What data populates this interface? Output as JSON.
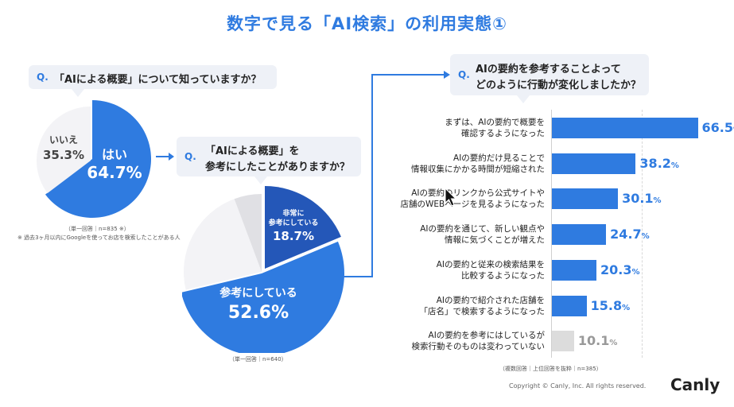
{
  "title": "数字で見る「AI検索」の利用実態①",
  "q1": {
    "mark": "Q.",
    "question": "「AIによる概要」について知っていますか？",
    "note1": "（単一回答｜n=835 ※）",
    "note2": "※ 過去3ヶ月以内にGoogleを使ってお店を検索したことがある人"
  },
  "q2": {
    "mark": "Q.",
    "question_line1": "「AIによる概要」を",
    "question_line2": "参考にしたことがありますか？",
    "note": "（単一回答｜n=640）"
  },
  "q3": {
    "mark": "Q.",
    "question_line1": "AIの要約を参考することよって",
    "question_line2": "どのように行動が変化しましたか？",
    "note": "（複数回答｜上位回答を抜粋｜n=385）"
  },
  "chart_data": [
    {
      "type": "pie",
      "slices": [
        {
          "label": "はい",
          "value": 64.7,
          "color": "#2f7be0"
        },
        {
          "label": "いいえ",
          "value": 35.3,
          "color": "#f3f3f6"
        }
      ],
      "value_unit": "%"
    },
    {
      "type": "pie",
      "slices": [
        {
          "label": "非常に参考にしている",
          "value": 18.7,
          "color": "#2457b8"
        },
        {
          "label": "参考にしている",
          "value": 52.6,
          "color": "#2f7be0"
        },
        {
          "label": "",
          "value": 23.0,
          "color": "#f3f3f6"
        },
        {
          "label": "",
          "value": 5.7,
          "color": "#e0e0e4"
        }
      ],
      "value_unit": "%"
    },
    {
      "type": "bar",
      "orientation": "horizontal",
      "categories": [
        [
          "まずは、AIの要約で概要を",
          "確認するようになった"
        ],
        [
          "AIの要約だけ見ることで",
          "情報収集にかかる時間が短縮された"
        ],
        [
          "AIの要約のリンクから公式サイトや",
          "店舗のWEBページを見るようになった"
        ],
        [
          "AIの要約を通じて、新しい観点や",
          "情報に気づくことが増えた"
        ],
        [
          "AIの要約と従来の検索結果を",
          "比較するようになった"
        ],
        [
          "AIの要約で紹介された店舗を",
          "「店名」で検索するようになった"
        ],
        [
          "AIの要約を参考にはしているが",
          "検索行動そのものは変わっていない"
        ]
      ],
      "values": [
        66.5,
        38.2,
        30.1,
        24.7,
        20.3,
        15.8,
        10.1
      ],
      "value_unit": "%",
      "colors": [
        "#2f7be0",
        "#2f7be0",
        "#2f7be0",
        "#2f7be0",
        "#2f7be0",
        "#2f7be0",
        "#dcdcdc"
      ],
      "value_colors": [
        "#2f7be0",
        "#2f7be0",
        "#2f7be0",
        "#2f7be0",
        "#2f7be0",
        "#2f7be0",
        "#999999"
      ],
      "xlim": [
        0,
        100
      ]
    }
  ],
  "footer": {
    "copyright": "Copyright © Canly, Inc. All rights reserved.",
    "logo": "Canly"
  }
}
